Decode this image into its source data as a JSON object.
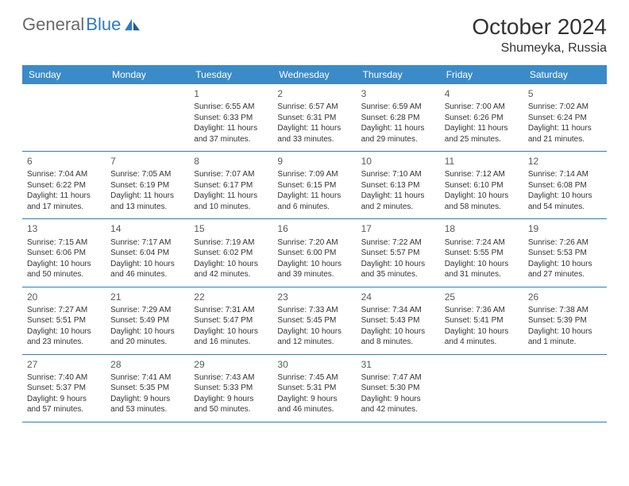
{
  "logo": {
    "text_gray": "General",
    "text_blue": "Blue"
  },
  "title": "October 2024",
  "location": "Shumeyka, Russia",
  "colors": {
    "header_bg": "#3b8bc9",
    "header_text": "#ffffff",
    "divider": "#2f7bbf",
    "body_text": "#333333",
    "logo_gray": "#6a6a6a",
    "logo_blue": "#2f7bbf",
    "daynum": "#5a5a5a",
    "background": "#ffffff"
  },
  "typography": {
    "title_fontsize": 28,
    "location_fontsize": 16,
    "weekday_fontsize": 12,
    "daynum_fontsize": 12,
    "cell_fontsize": 10,
    "font_family": "Arial"
  },
  "layout": {
    "columns": 7,
    "rows": 5,
    "leading_blanks": 2
  },
  "weekdays": [
    "Sunday",
    "Monday",
    "Tuesday",
    "Wednesday",
    "Thursday",
    "Friday",
    "Saturday"
  ],
  "days": [
    {
      "n": 1,
      "sunrise": "6:55 AM",
      "sunset": "6:33 PM",
      "daylight": "11 hours and 37 minutes."
    },
    {
      "n": 2,
      "sunrise": "6:57 AM",
      "sunset": "6:31 PM",
      "daylight": "11 hours and 33 minutes."
    },
    {
      "n": 3,
      "sunrise": "6:59 AM",
      "sunset": "6:28 PM",
      "daylight": "11 hours and 29 minutes."
    },
    {
      "n": 4,
      "sunrise": "7:00 AM",
      "sunset": "6:26 PM",
      "daylight": "11 hours and 25 minutes."
    },
    {
      "n": 5,
      "sunrise": "7:02 AM",
      "sunset": "6:24 PM",
      "daylight": "11 hours and 21 minutes."
    },
    {
      "n": 6,
      "sunrise": "7:04 AM",
      "sunset": "6:22 PM",
      "daylight": "11 hours and 17 minutes."
    },
    {
      "n": 7,
      "sunrise": "7:05 AM",
      "sunset": "6:19 PM",
      "daylight": "11 hours and 13 minutes."
    },
    {
      "n": 8,
      "sunrise": "7:07 AM",
      "sunset": "6:17 PM",
      "daylight": "11 hours and 10 minutes."
    },
    {
      "n": 9,
      "sunrise": "7:09 AM",
      "sunset": "6:15 PM",
      "daylight": "11 hours and 6 minutes."
    },
    {
      "n": 10,
      "sunrise": "7:10 AM",
      "sunset": "6:13 PM",
      "daylight": "11 hours and 2 minutes."
    },
    {
      "n": 11,
      "sunrise": "7:12 AM",
      "sunset": "6:10 PM",
      "daylight": "10 hours and 58 minutes."
    },
    {
      "n": 12,
      "sunrise": "7:14 AM",
      "sunset": "6:08 PM",
      "daylight": "10 hours and 54 minutes."
    },
    {
      "n": 13,
      "sunrise": "7:15 AM",
      "sunset": "6:06 PM",
      "daylight": "10 hours and 50 minutes."
    },
    {
      "n": 14,
      "sunrise": "7:17 AM",
      "sunset": "6:04 PM",
      "daylight": "10 hours and 46 minutes."
    },
    {
      "n": 15,
      "sunrise": "7:19 AM",
      "sunset": "6:02 PM",
      "daylight": "10 hours and 42 minutes."
    },
    {
      "n": 16,
      "sunrise": "7:20 AM",
      "sunset": "6:00 PM",
      "daylight": "10 hours and 39 minutes."
    },
    {
      "n": 17,
      "sunrise": "7:22 AM",
      "sunset": "5:57 PM",
      "daylight": "10 hours and 35 minutes."
    },
    {
      "n": 18,
      "sunrise": "7:24 AM",
      "sunset": "5:55 PM",
      "daylight": "10 hours and 31 minutes."
    },
    {
      "n": 19,
      "sunrise": "7:26 AM",
      "sunset": "5:53 PM",
      "daylight": "10 hours and 27 minutes."
    },
    {
      "n": 20,
      "sunrise": "7:27 AM",
      "sunset": "5:51 PM",
      "daylight": "10 hours and 23 minutes."
    },
    {
      "n": 21,
      "sunrise": "7:29 AM",
      "sunset": "5:49 PM",
      "daylight": "10 hours and 20 minutes."
    },
    {
      "n": 22,
      "sunrise": "7:31 AM",
      "sunset": "5:47 PM",
      "daylight": "10 hours and 16 minutes."
    },
    {
      "n": 23,
      "sunrise": "7:33 AM",
      "sunset": "5:45 PM",
      "daylight": "10 hours and 12 minutes."
    },
    {
      "n": 24,
      "sunrise": "7:34 AM",
      "sunset": "5:43 PM",
      "daylight": "10 hours and 8 minutes."
    },
    {
      "n": 25,
      "sunrise": "7:36 AM",
      "sunset": "5:41 PM",
      "daylight": "10 hours and 4 minutes."
    },
    {
      "n": 26,
      "sunrise": "7:38 AM",
      "sunset": "5:39 PM",
      "daylight": "10 hours and 1 minute."
    },
    {
      "n": 27,
      "sunrise": "7:40 AM",
      "sunset": "5:37 PM",
      "daylight": "9 hours and 57 minutes."
    },
    {
      "n": 28,
      "sunrise": "7:41 AM",
      "sunset": "5:35 PM",
      "daylight": "9 hours and 53 minutes."
    },
    {
      "n": 29,
      "sunrise": "7:43 AM",
      "sunset": "5:33 PM",
      "daylight": "9 hours and 50 minutes."
    },
    {
      "n": 30,
      "sunrise": "7:45 AM",
      "sunset": "5:31 PM",
      "daylight": "9 hours and 46 minutes."
    },
    {
      "n": 31,
      "sunrise": "7:47 AM",
      "sunset": "5:30 PM",
      "daylight": "9 hours and 42 minutes."
    }
  ],
  "labels": {
    "sunrise": "Sunrise:",
    "sunset": "Sunset:",
    "daylight": "Daylight:"
  }
}
